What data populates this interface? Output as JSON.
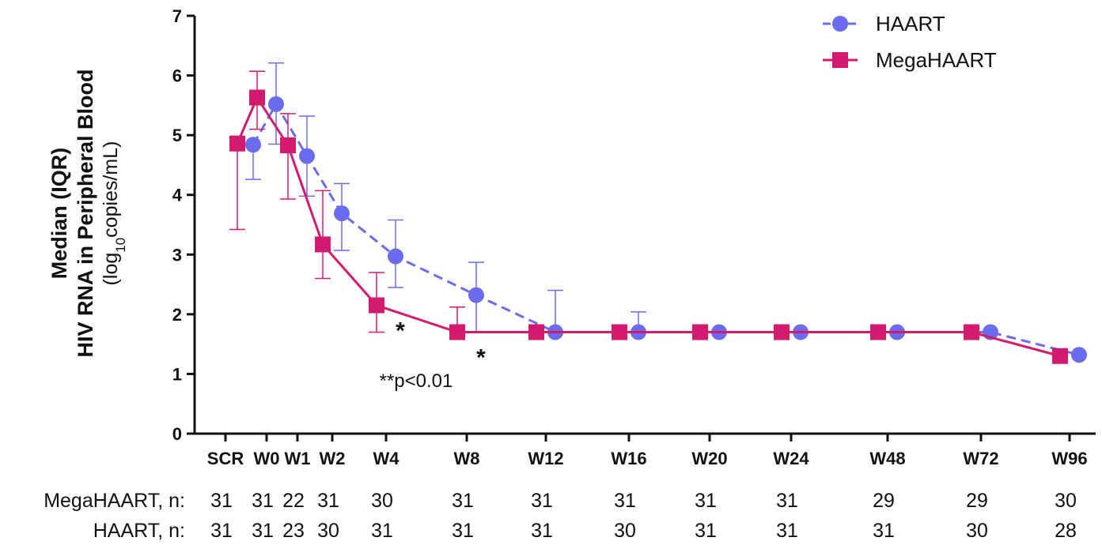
{
  "chart_data": {
    "type": "line",
    "ylabel_line1": "Median (IQR)",
    "ylabel_line2": "HIV RNA in Peripheral Blood",
    "ylabel_unit_prefix": "(log",
    "ylabel_unit_sub": "10",
    "ylabel_unit_suffix": "copies/mL)",
    "ylim": [
      0,
      7
    ],
    "yticks": [
      "0",
      "1",
      "2",
      "3",
      "4",
      "5",
      "6",
      "7"
    ],
    "categories": [
      "SCR",
      "W0",
      "W1",
      "W2",
      "W4",
      "W8",
      "W12",
      "W16",
      "W20",
      "W24",
      "W48",
      "W72",
      "W96"
    ],
    "series": [
      {
        "name": "HAART",
        "color": "#6b6bf0",
        "marker": "circle",
        "line": "dashed",
        "values": [
          4.84,
          5.52,
          4.65,
          3.69,
          2.97,
          2.32,
          1.7,
          1.7,
          1.7,
          1.7,
          1.7,
          1.7,
          1.32
        ],
        "err_low": [
          4.26,
          4.85,
          3.98,
          3.07,
          2.45,
          1.7,
          1.7,
          1.7,
          1.7,
          1.7,
          1.7,
          1.7,
          1.32
        ],
        "err_high": [
          4.84,
          6.21,
          5.32,
          4.19,
          3.58,
          2.87,
          2.4,
          2.04,
          1.7,
          1.7,
          1.7,
          1.7,
          1.32
        ]
      },
      {
        "name": "MegaHAART",
        "color": "#d21a6e",
        "marker": "square",
        "line": "solid",
        "values": [
          4.86,
          5.63,
          4.83,
          3.17,
          2.15,
          1.7,
          1.7,
          1.7,
          1.7,
          1.7,
          1.7,
          1.7,
          1.3
        ],
        "err_low": [
          3.42,
          5.1,
          3.93,
          2.6,
          1.7,
          1.7,
          1.7,
          1.7,
          1.7,
          1.7,
          1.7,
          1.7,
          1.3
        ],
        "err_high": [
          4.98,
          6.07,
          5.36,
          4.07,
          2.7,
          2.12,
          1.7,
          1.7,
          1.7,
          1.7,
          1.7,
          1.7,
          1.3
        ]
      }
    ],
    "significance_markers": [
      {
        "category": "W4",
        "text": "*"
      },
      {
        "category": "W8",
        "text": "*"
      }
    ],
    "annotation": "**p<0.01",
    "legend_position": "top-right",
    "grid": false
  },
  "n_table": {
    "rows": [
      {
        "label": "MegaHAART, n:",
        "values": [
          "31",
          "31",
          "22",
          "31",
          "30",
          "31",
          "31",
          "31",
          "31",
          "31",
          "29",
          "29",
          "30"
        ]
      },
      {
        "label": "HAART, n:",
        "values": [
          "31",
          "31",
          "23",
          "30",
          "31",
          "31",
          "31",
          "30",
          "31",
          "31",
          "31",
          "30",
          "28"
        ]
      }
    ]
  }
}
